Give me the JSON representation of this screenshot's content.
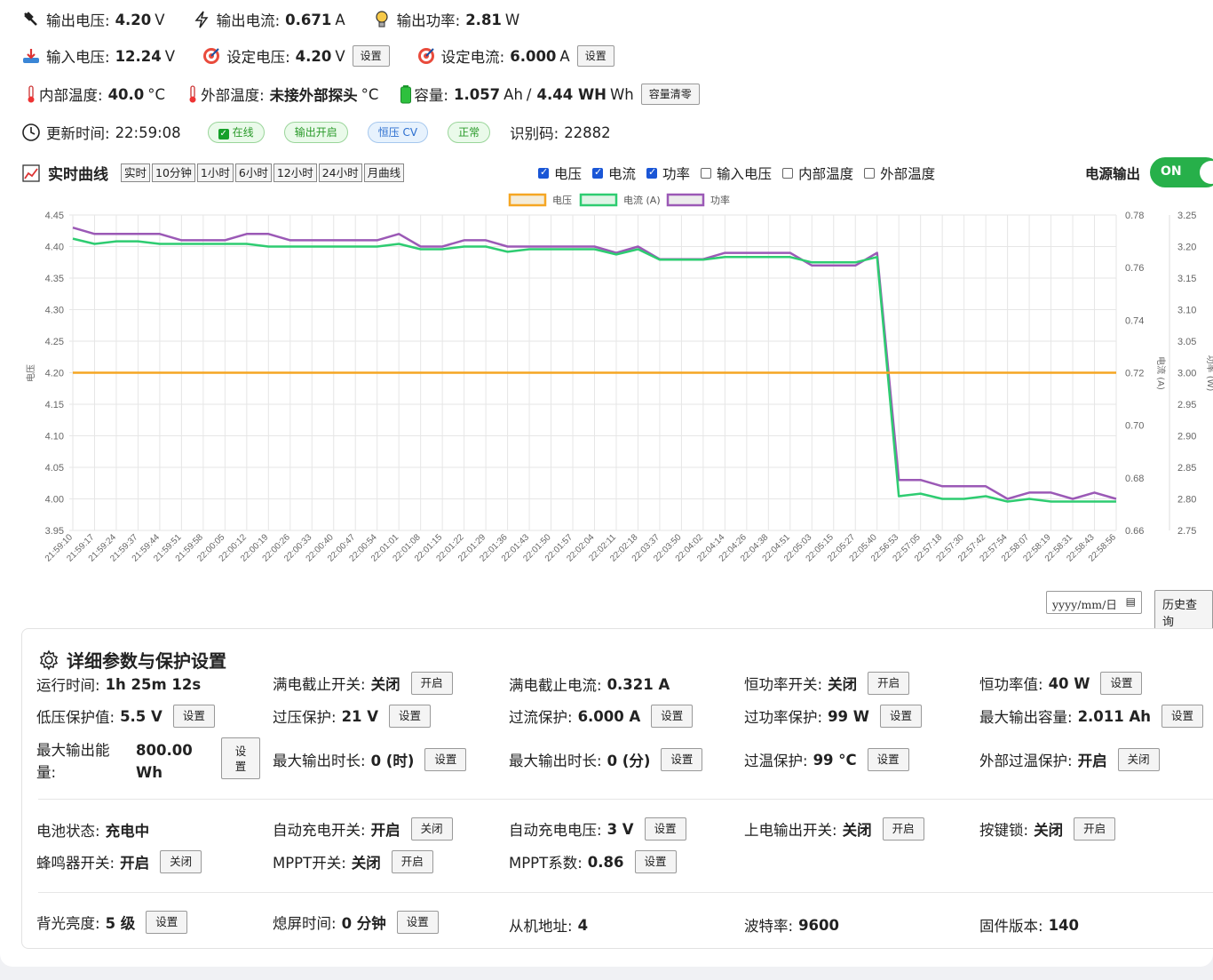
{
  "status": {
    "out_voltage": {
      "label": "输出电压:",
      "value": "4.20",
      "unit": "V"
    },
    "out_current": {
      "label": "输出电流:",
      "value": "0.671",
      "unit": "A"
    },
    "out_power": {
      "label": "输出功率:",
      "value": "2.81",
      "unit": "W"
    },
    "in_voltage": {
      "label": "输入电压:",
      "value": "12.24",
      "unit": "V"
    },
    "set_voltage": {
      "label": "设定电压:",
      "value": "4.20",
      "unit": "V",
      "button": "设置"
    },
    "set_current": {
      "label": "设定电流:",
      "value": "6.000",
      "unit": "A",
      "button": "设置"
    },
    "int_temp": {
      "label": "内部温度:",
      "value": "40.0",
      "unit": "°C"
    },
    "ext_temp": {
      "label": "外部温度:",
      "value": "未接外部探头",
      "unit": "°C"
    },
    "capacity": {
      "label": "容量:",
      "value_ah": "1.057",
      "unit_ah": "Ah",
      "sep": "/",
      "value_wh": "4.44 WH",
      "unit_wh": "Wh",
      "button": "容量清零"
    },
    "update_time": {
      "label": "更新时间:",
      "value": "22:59:08"
    },
    "badges": {
      "online": "在线",
      "output_on": "输出开启",
      "mode": "恒压 CV",
      "normal": "正常"
    },
    "id_code": {
      "label": "识别码:",
      "value": "22882"
    }
  },
  "realtime": {
    "title": "实时曲线",
    "ranges": [
      "实时",
      "10分钟",
      "1小时",
      "6小时",
      "12小时",
      "24小时",
      "月曲线"
    ],
    "toggles": [
      {
        "label": "电压",
        "checked": true
      },
      {
        "label": "电流",
        "checked": true
      },
      {
        "label": "功率",
        "checked": true
      },
      {
        "label": "输入电压",
        "checked": false
      },
      {
        "label": "内部温度",
        "checked": false
      },
      {
        "label": "外部温度",
        "checked": false
      }
    ],
    "power_output_label": "电源输出",
    "power_output_state": "ON",
    "date_placeholder": "yyyy/mm/日",
    "history_button": "历史查询"
  },
  "chart_data": {
    "type": "line",
    "x": [
      "21:59:10",
      "21:59:17",
      "21:59:24",
      "21:59:37",
      "21:59:44",
      "21:59:51",
      "21:59:58",
      "22:00:05",
      "22:00:12",
      "22:00:19",
      "22:00:26",
      "22:00:33",
      "22:00:40",
      "22:00:47",
      "22:00:54",
      "22:01:01",
      "22:01:08",
      "22:01:15",
      "22:01:22",
      "22:01:29",
      "22:01:36",
      "22:01:43",
      "22:01:50",
      "22:01:57",
      "22:02:04",
      "22:02:11",
      "22:02:18",
      "22:03:37",
      "22:03:50",
      "22:04:02",
      "22:04:14",
      "22:04:26",
      "22:04:38",
      "22:04:51",
      "22:05:03",
      "22:05:15",
      "22:05:27",
      "22:05:40",
      "22:56:53",
      "22:57:05",
      "22:57:18",
      "22:57:30",
      "22:57:42",
      "22:57:54",
      "22:58:07",
      "22:58:19",
      "22:58:31",
      "22:58:43",
      "22:58:56"
    ],
    "legend": [
      "电压",
      "电流 (A)",
      "功率"
    ],
    "series": [
      {
        "name": "电压",
        "axis": "y1",
        "color": "#f5a623",
        "values": [
          4.2,
          4.2,
          4.2,
          4.2,
          4.2,
          4.2,
          4.2,
          4.2,
          4.2,
          4.2,
          4.2,
          4.2,
          4.2,
          4.2,
          4.2,
          4.2,
          4.2,
          4.2,
          4.2,
          4.2,
          4.2,
          4.2,
          4.2,
          4.2,
          4.2,
          4.2,
          4.2,
          4.2,
          4.2,
          4.2,
          4.2,
          4.2,
          4.2,
          4.2,
          4.2,
          4.2,
          4.2,
          4.2,
          4.2,
          4.2,
          4.2,
          4.2,
          4.2,
          4.2,
          4.2,
          4.2,
          4.2,
          4.2,
          4.2
        ]
      },
      {
        "name": "电流 (A)",
        "axis": "y2",
        "color": "#2ecc71",
        "values": [
          0.771,
          0.769,
          0.77,
          0.77,
          0.769,
          0.769,
          0.769,
          0.769,
          0.769,
          0.768,
          0.768,
          0.768,
          0.768,
          0.768,
          0.768,
          0.769,
          0.767,
          0.767,
          0.768,
          0.768,
          0.766,
          0.767,
          0.767,
          0.767,
          0.767,
          0.765,
          0.767,
          0.763,
          0.763,
          0.763,
          0.764,
          0.764,
          0.764,
          0.764,
          0.762,
          0.762,
          0.762,
          0.764,
          0.673,
          0.674,
          0.672,
          0.672,
          0.673,
          0.671,
          0.672,
          0.671,
          0.671,
          0.671,
          0.671
        ]
      },
      {
        "name": "功率",
        "axis": "y3",
        "color": "#9b59b6",
        "values": [
          3.23,
          3.22,
          3.22,
          3.22,
          3.22,
          3.21,
          3.21,
          3.21,
          3.22,
          3.22,
          3.21,
          3.21,
          3.21,
          3.21,
          3.21,
          3.22,
          3.2,
          3.2,
          3.21,
          3.21,
          3.2,
          3.2,
          3.2,
          3.2,
          3.2,
          3.19,
          3.2,
          3.18,
          3.18,
          3.18,
          3.19,
          3.19,
          3.19,
          3.19,
          3.17,
          3.17,
          3.17,
          3.19,
          2.83,
          2.83,
          2.82,
          2.82,
          2.82,
          2.8,
          2.81,
          2.81,
          2.8,
          2.81,
          2.8
        ]
      }
    ],
    "y1": {
      "label": "电压",
      "min": 3.95,
      "max": 4.45,
      "ticks": [
        "4.45",
        "4.40",
        "4.35",
        "4.30",
        "4.25",
        "4.20",
        "4.15",
        "4.10",
        "4.05",
        "4.00",
        "3.95"
      ]
    },
    "y2": {
      "label": "电流 (A)",
      "min": 0.66,
      "max": 0.78,
      "ticks": [
        "0.78",
        "0.76",
        "0.74",
        "0.72",
        "0.70",
        "0.68",
        "0.66"
      ]
    },
    "y3": {
      "label": "功率 (W)",
      "min": 2.75,
      "max": 3.25,
      "ticks": [
        "3.25",
        "3.20",
        "3.15",
        "3.10",
        "3.05",
        "3.00",
        "2.95",
        "2.90",
        "2.85",
        "2.80",
        "2.75"
      ]
    },
    "grid": true,
    "legend_position": "top"
  },
  "detail": {
    "title": "详细参数与保护设置",
    "run_time": {
      "label": "运行时间:",
      "value": "1h 25m 12s"
    },
    "full_cutoff_switch": {
      "label": "满电截止开关:",
      "value": "关闭",
      "button": "开启"
    },
    "full_cutoff_current": {
      "label": "满电截止电流:",
      "value": "0.321 A"
    },
    "cp_switch": {
      "label": "恒功率开关:",
      "value": "关闭",
      "button": "开启"
    },
    "cp_value": {
      "label": "恒功率值:",
      "value": "40 W",
      "button": "设置"
    },
    "uvp": {
      "label": "低压保护值:",
      "value": "5.5 V",
      "button": "设置"
    },
    "ovp": {
      "label": "过压保护:",
      "value": "21 V",
      "button": "设置"
    },
    "ocp": {
      "label": "过流保护:",
      "value": "6.000 A",
      "button": "设置"
    },
    "opp": {
      "label": "过功率保护:",
      "value": "99 W",
      "button": "设置"
    },
    "max_capacity": {
      "label": "最大输出容量:",
      "value": "2.011 Ah",
      "button": "设置"
    },
    "max_energy": {
      "label1": "最大输出能",
      "label2": "量:",
      "value1": "800.00",
      "value2": "Wh",
      "button1": "设",
      "button2": "置"
    },
    "max_time_h": {
      "label": "最大输出时长:",
      "value": "0 (时)",
      "button": "设置"
    },
    "max_time_m": {
      "label": "最大输出时长:",
      "value": "0 (分)",
      "button": "设置"
    },
    "otp": {
      "label": "过温保护:",
      "value": "99 °C",
      "button": "设置"
    },
    "ext_otp": {
      "label": "外部过温保护:",
      "value": "开启",
      "button": "关闭"
    },
    "battery_state": {
      "label": "电池状态:",
      "value": "充电中"
    },
    "auto_charge_switch": {
      "label": "自动充电开关:",
      "value": "开启",
      "button": "关闭"
    },
    "auto_charge_voltage": {
      "label": "自动充电电压:",
      "value": "3 V",
      "button": "设置"
    },
    "power_on_output": {
      "label": "上电输出开关:",
      "value": "关闭",
      "button": "开启"
    },
    "key_lock": {
      "label": "按键锁:",
      "value": "关闭",
      "button": "开启"
    },
    "buzzer": {
      "label": "蜂鸣器开关:",
      "value": "开启",
      "button": "关闭"
    },
    "mppt_switch": {
      "label": "MPPT开关:",
      "value": "关闭",
      "button": "开启"
    },
    "mppt_factor": {
      "label": "MPPT系数:",
      "value": "0.86",
      "button": "设置"
    },
    "backlight": {
      "label": "背光亮度:",
      "value": "5 级",
      "button": "设置"
    },
    "screen_off": {
      "label": "熄屏时间:",
      "value": "0 分钟",
      "button": "设置"
    },
    "slave_addr": {
      "label": "从机地址:",
      "value": "4"
    },
    "baud": {
      "label": "波特率:",
      "value": "9600"
    },
    "firmware": {
      "label": "固件版本:",
      "value": "140"
    }
  }
}
